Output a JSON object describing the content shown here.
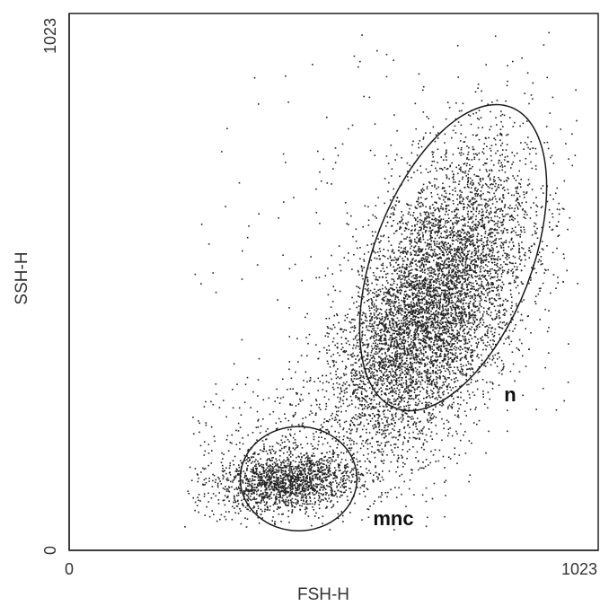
{
  "chart_data": {
    "type": "scatter",
    "title": "",
    "xlabel": "FSH-H",
    "ylabel": "SSH-H",
    "xlim": [
      0,
      1023
    ],
    "ylim": [
      0,
      1023
    ],
    "x_ticks": [
      "0",
      "1023"
    ],
    "y_ticks": [
      "0",
      "1023"
    ],
    "grid": false,
    "point_color": "#222222",
    "populations": [
      {
        "cx": 745,
        "cy": 500,
        "sx": 90,
        "sy": 145,
        "corr": 0.45,
        "n": 5200
      },
      {
        "cx": 655,
        "cy": 400,
        "sx": 65,
        "sy": 90,
        "corr": 0.4,
        "n": 1100
      },
      {
        "cx": 435,
        "cy": 135,
        "sx": 70,
        "sy": 28,
        "corr": 0.15,
        "n": 1500
      },
      {
        "cx": 470,
        "cy": 210,
        "sx": 120,
        "sy": 90,
        "corr": 0.35,
        "n": 700
      },
      {
        "cx": 640,
        "cy": 700,
        "sx": 260,
        "sy": 260,
        "corr": 0.2,
        "n": 250
      }
    ],
    "gates": [
      {
        "label": "n",
        "cx": 770,
        "cy": 572,
        "rx": 158,
        "ry": 315,
        "angle_deg": 21
      },
      {
        "label": "mnc",
        "cx": 460,
        "cy": 140,
        "rx": 117,
        "ry": 102,
        "angle_deg": 0
      }
    ]
  }
}
